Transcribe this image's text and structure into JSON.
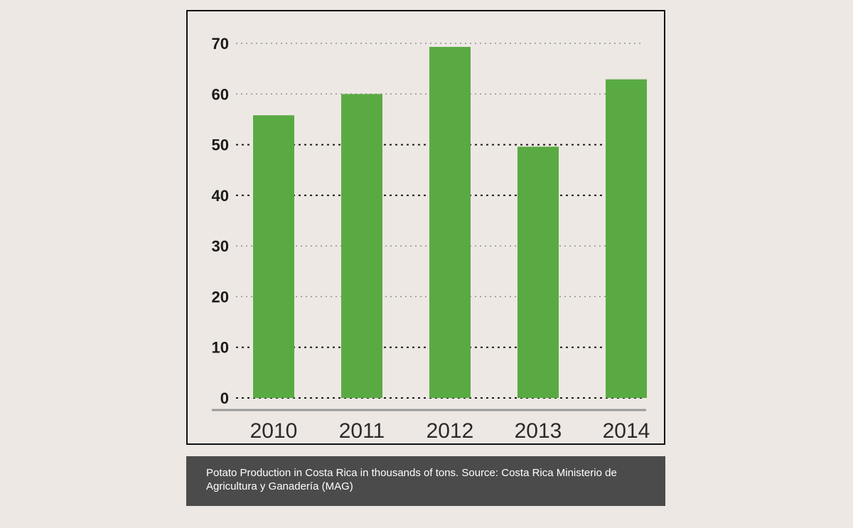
{
  "chart_data": {
    "type": "bar",
    "categories": [
      "2010",
      "2011",
      "2012",
      "2013",
      "2014"
    ],
    "values": [
      55.8,
      60,
      69.3,
      49.6,
      62.9
    ],
    "yticks": [
      "0",
      "10",
      "20",
      "30",
      "40",
      "50",
      "60",
      "70"
    ],
    "ylim": [
      0,
      70
    ],
    "title": "",
    "xlabel": "",
    "ylabel": "",
    "grid": "dotted horizontal",
    "colors": {
      "bar": "#5aaa44",
      "axis": "#9a9a9a",
      "grid_major": "#1a1a1a",
      "grid_minor": "#8f8f8f"
    }
  },
  "caption": {
    "text": "Potato Production in Costa Rica in thousands of tons. Source: Costa Rica Ministerio de Agricultura y Ganadería (MAG)"
  }
}
